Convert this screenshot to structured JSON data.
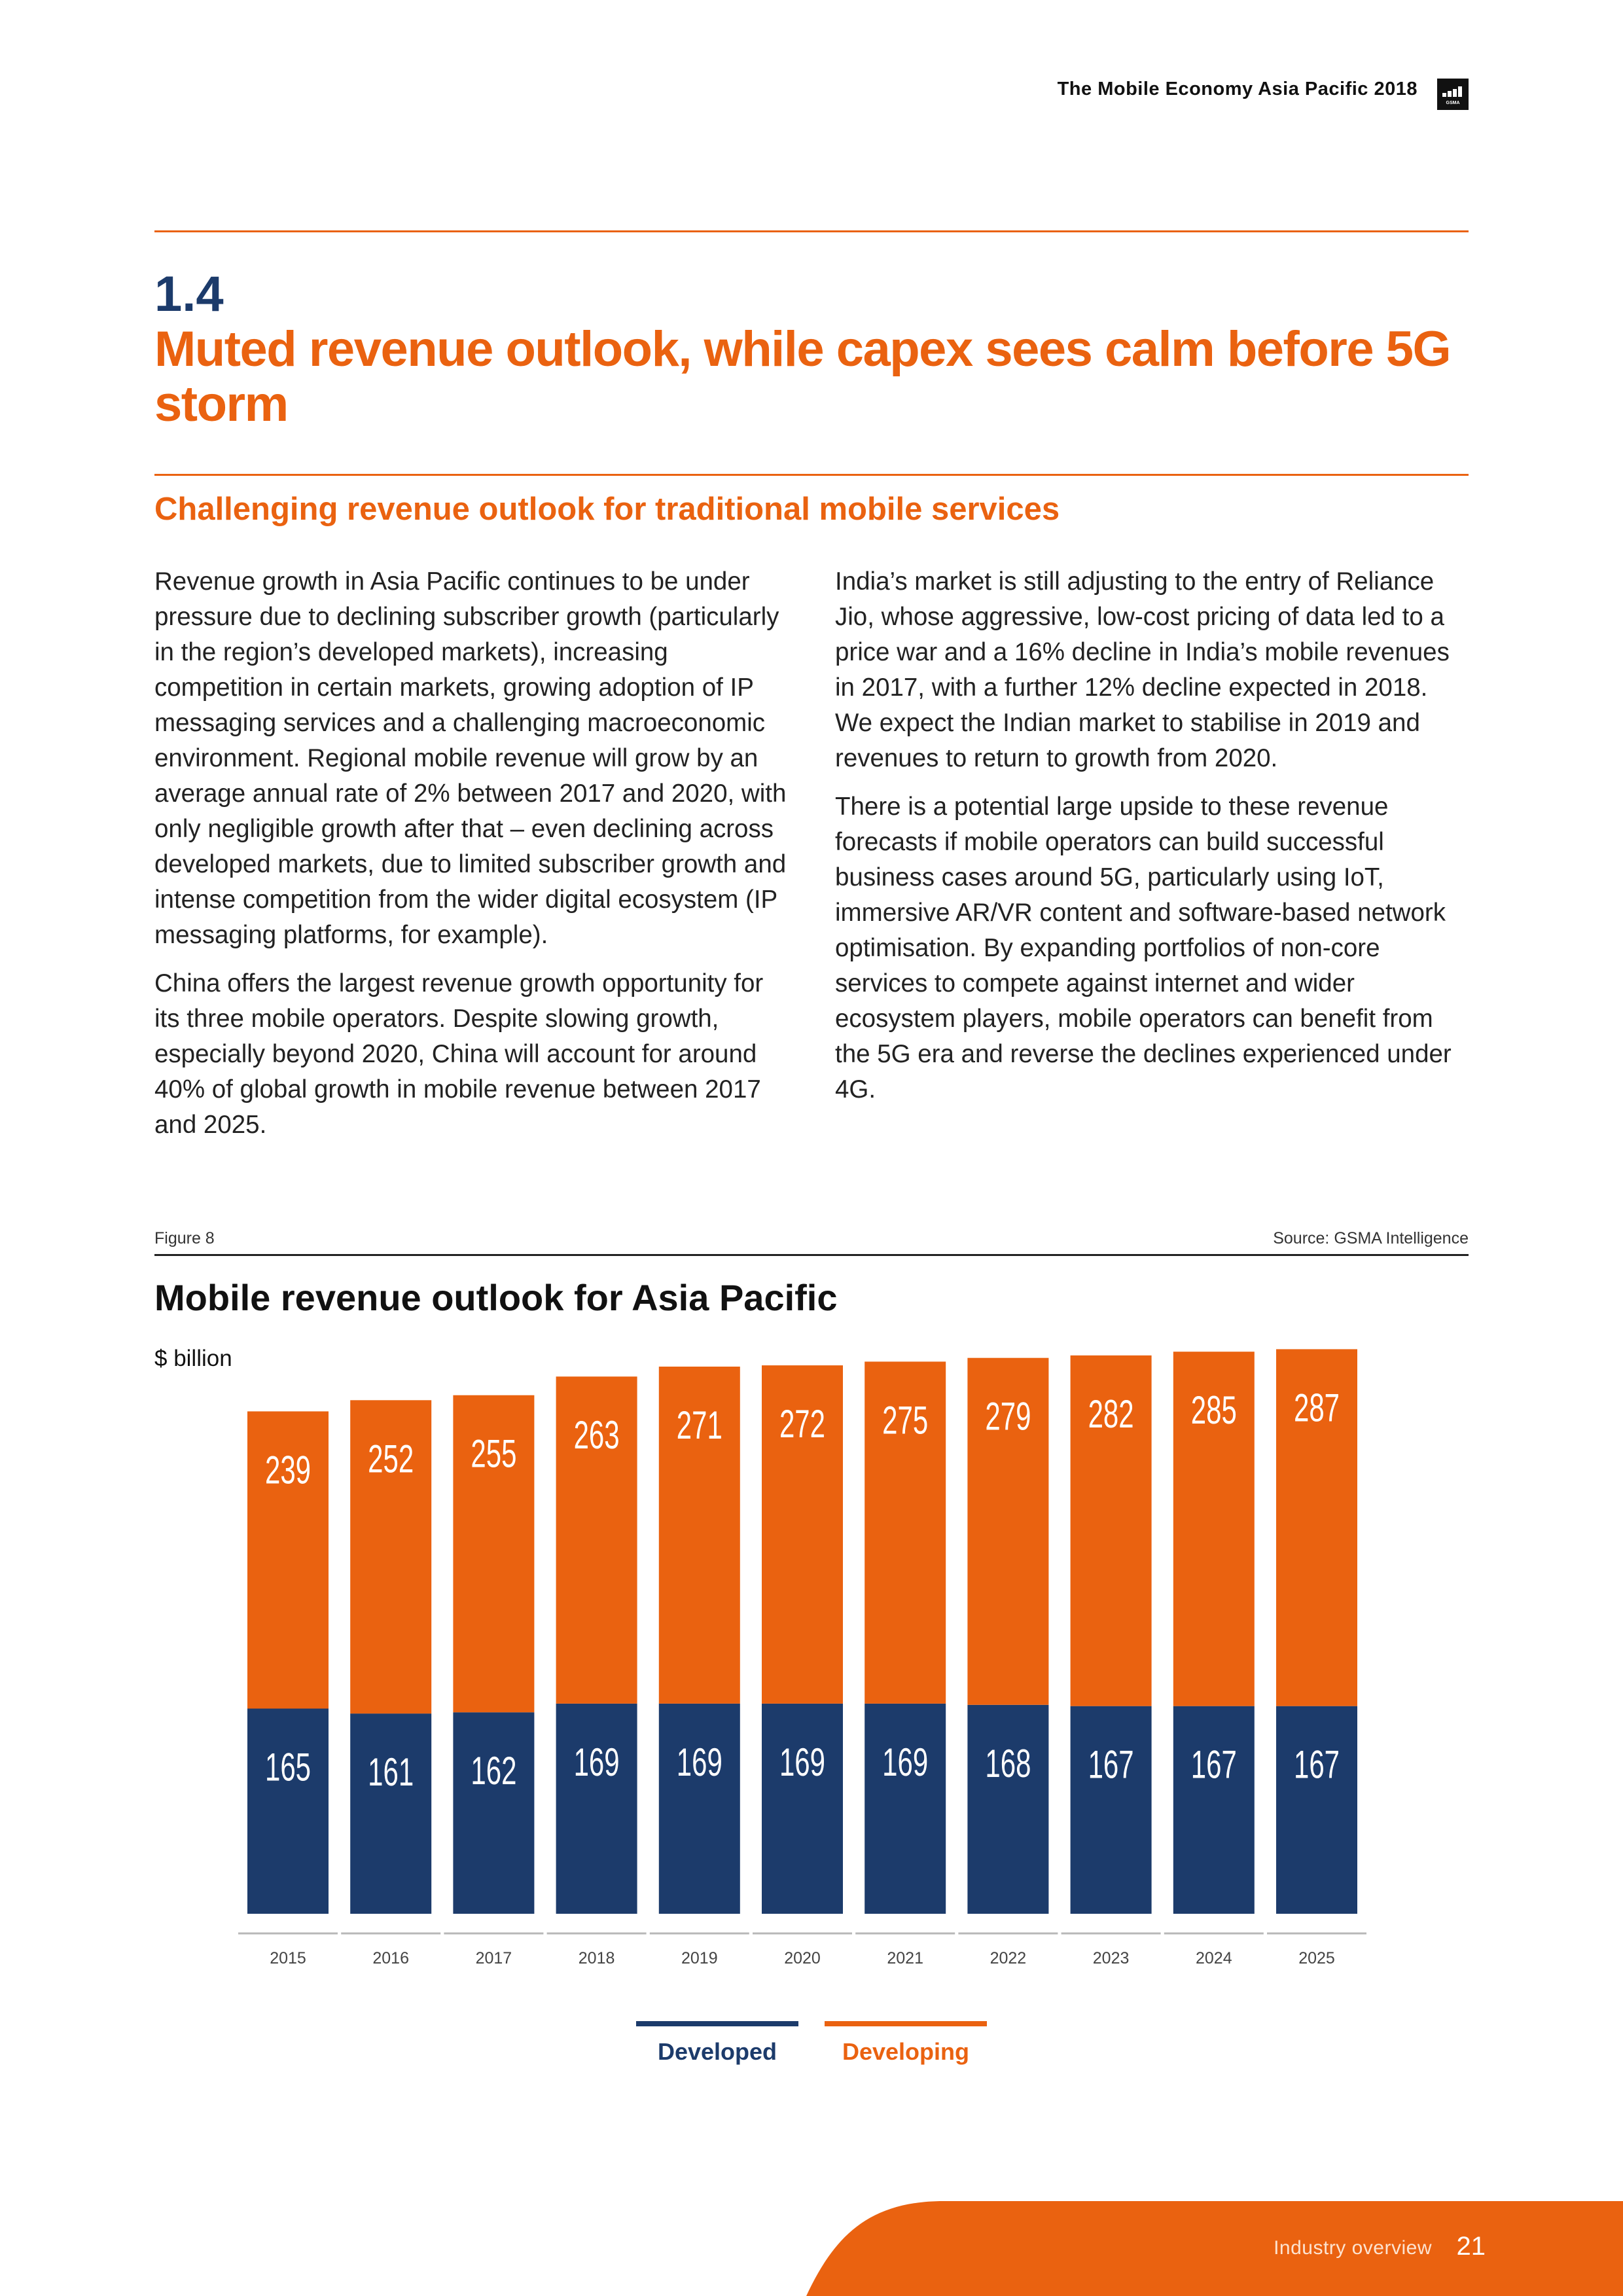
{
  "header": {
    "publication": "The Mobile Economy Asia Pacific 2018",
    "logo_text": "GSMA"
  },
  "section": {
    "number": "1.4",
    "title": "Muted revenue outlook, while capex sees calm before 5G storm",
    "subheading": "Challenging revenue outlook for traditional mobile services"
  },
  "body": {
    "left": [
      "Revenue growth in Asia Pacific continues to be under pressure due to declining subscriber growth (particularly in the region’s developed markets), increasing competition in certain markets, growing adoption of IP messaging services and a challenging macroeconomic environment. Regional mobile revenue will grow by an average annual rate of 2% between 2017 and 2020, with only negligible growth after that – even declining across developed markets, due to limited subscriber growth and intense competition from the wider digital ecosystem (IP messaging platforms, for example).",
      "China offers the largest revenue growth opportunity for its three mobile operators. Despite slowing growth, especially beyond 2020, China will account for around 40% of global growth in mobile revenue between 2017 and 2025."
    ],
    "right": [
      "India’s market is still adjusting to the entry of Reliance Jio, whose aggressive, low-cost pricing of data led to a price war and a 16% decline in India’s mobile revenues in 2017, with a further 12% decline expected in 2018. We expect the Indian market to stabilise in 2019 and revenues to return to growth from 2020.",
      "There is a potential large upside to these revenue forecasts if mobile operators can build successful business cases around 5G, particularly using IoT, immersive AR/VR content and software-based network optimisation. By expanding portfolios of non-core services to compete against internet and wider ecosystem players, mobile operators can benefit from the 5G era and reverse the declines experienced under 4G."
    ]
  },
  "figure": {
    "label": "Figure 8",
    "source": "Source: GSMA Intelligence"
  },
  "chart_data": {
    "type": "bar",
    "stacked": true,
    "title": "Mobile revenue outlook for Asia Pacific",
    "ylabel": "$ billion",
    "categories": [
      "2015",
      "2016",
      "2017",
      "2018",
      "2019",
      "2020",
      "2021",
      "2022",
      "2023",
      "2024",
      "2025"
    ],
    "series": [
      {
        "name": "Developed",
        "color": "#1c3b6b",
        "values": [
          165,
          161,
          162,
          169,
          169,
          169,
          169,
          168,
          167,
          167,
          167
        ]
      },
      {
        "name": "Developing",
        "color": "#ea6210",
        "values": [
          239,
          252,
          255,
          263,
          271,
          272,
          275,
          279,
          282,
          285,
          287
        ]
      }
    ],
    "legend_position": "bottom-center"
  },
  "footer": {
    "section": "Industry overview",
    "page": "21"
  },
  "colors": {
    "accent": "#ea6210",
    "navy": "#1c3b6b"
  }
}
